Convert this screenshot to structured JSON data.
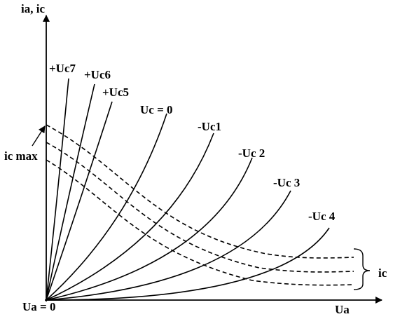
{
  "axes": {
    "y_label": "ia, ic",
    "x_label": "Ua",
    "origin_label": "Ua = 0"
  },
  "annotations": {
    "ic_max": "ic max",
    "ic_group": "ic"
  },
  "curves": [
    "+Uc7",
    "+Uc6",
    "+Uc5",
    "Uc = 0",
    "-Uc1",
    "-Uc 2",
    "-Uc 3",
    "-Uc 4"
  ]
}
